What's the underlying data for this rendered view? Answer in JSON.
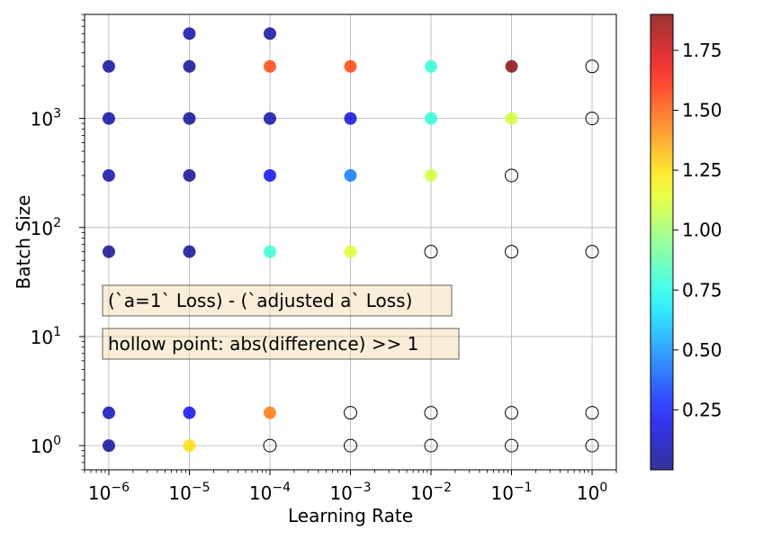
{
  "chart_data": {
    "type": "scatter",
    "xlabel": "Learning Rate",
    "ylabel": "Batch Size",
    "xscale": "log",
    "yscale": "log",
    "xlim": [
      5e-07,
      2
    ],
    "ylim": [
      0.6,
      9000
    ],
    "grid": true,
    "x_ticks": [
      {
        "value": 1e-06,
        "base": "10",
        "exp": "−6"
      },
      {
        "value": 1e-05,
        "base": "10",
        "exp": "−5"
      },
      {
        "value": 0.0001,
        "base": "10",
        "exp": "−4"
      },
      {
        "value": 0.001,
        "base": "10",
        "exp": "−3"
      },
      {
        "value": 0.01,
        "base": "10",
        "exp": "−2"
      },
      {
        "value": 0.1,
        "base": "10",
        "exp": "−1"
      },
      {
        "value": 1,
        "base": "10",
        "exp": "0"
      }
    ],
    "y_ticks": [
      {
        "value": 1,
        "base": "10",
        "exp": "0"
      },
      {
        "value": 10,
        "base": "10",
        "exp": "1"
      },
      {
        "value": 100,
        "base": "10",
        "exp": "2"
      },
      {
        "value": 1000,
        "base": "10",
        "exp": "3"
      }
    ],
    "colorbar": {
      "colormap": "jet",
      "vmin": 0.0,
      "vmax": 1.9,
      "alpha": 0.8,
      "tick_values": [
        0.25,
        0.5,
        0.75,
        1.0,
        1.25,
        1.5,
        1.75
      ],
      "tick_labels": [
        "0.25",
        "0.50",
        "0.75",
        "1.00",
        "1.25",
        "1.50",
        "1.75"
      ]
    },
    "annotations": [
      "(`a=1` Loss) - (`adjusted a` Loss)",
      "hollow point: abs(difference) >> 1"
    ],
    "points": [
      {
        "x": 1e-06,
        "y": 3000,
        "value": 0.05
      },
      {
        "x": 1e-06,
        "y": 1000,
        "value": 0.06
      },
      {
        "x": 1e-06,
        "y": 300,
        "value": 0.06
      },
      {
        "x": 1e-06,
        "y": 60,
        "value": 0.02
      },
      {
        "x": 1e-06,
        "y": 2,
        "value": 0.1
      },
      {
        "x": 1e-06,
        "y": 1,
        "value": 0.05
      },
      {
        "x": 1e-05,
        "y": 6000,
        "value": 0.07
      },
      {
        "x": 1e-05,
        "y": 3000,
        "value": 0.03
      },
      {
        "x": 1e-05,
        "y": 1000,
        "value": 0.04
      },
      {
        "x": 1e-05,
        "y": 300,
        "value": 0.02
      },
      {
        "x": 1e-05,
        "y": 60,
        "value": 0.03
      },
      {
        "x": 1e-05,
        "y": 2,
        "value": 0.2
      },
      {
        "x": 1e-05,
        "y": 1,
        "value": 1.25
      },
      {
        "x": 0.0001,
        "y": 6000,
        "value": 0.06
      },
      {
        "x": 0.0001,
        "y": 3000,
        "value": 1.55
      },
      {
        "x": 0.0001,
        "y": 1000,
        "value": 0.07
      },
      {
        "x": 0.0001,
        "y": 300,
        "value": 0.2
      },
      {
        "x": 0.0001,
        "y": 60,
        "value": 0.8
      },
      {
        "x": 0.0001,
        "y": 2,
        "value": 1.45
      },
      {
        "x": 0.0001,
        "y": 1,
        "value": null
      },
      {
        "x": 0.001,
        "y": 3000,
        "value": 1.55
      },
      {
        "x": 0.001,
        "y": 1000,
        "value": 0.17
      },
      {
        "x": 0.001,
        "y": 300,
        "value": 0.45
      },
      {
        "x": 0.001,
        "y": 60,
        "value": 1.12
      },
      {
        "x": 0.001,
        "y": 2,
        "value": null
      },
      {
        "x": 0.001,
        "y": 1,
        "value": null
      },
      {
        "x": 0.01,
        "y": 3000,
        "value": 0.78
      },
      {
        "x": 0.01,
        "y": 1000,
        "value": 0.78
      },
      {
        "x": 0.01,
        "y": 300,
        "value": 1.1
      },
      {
        "x": 0.01,
        "y": 60,
        "value": null
      },
      {
        "x": 0.01,
        "y": 2,
        "value": null
      },
      {
        "x": 0.01,
        "y": 1,
        "value": null
      },
      {
        "x": 0.1,
        "y": 3000,
        "value": 1.9
      },
      {
        "x": 0.1,
        "y": 1000,
        "value": 1.1
      },
      {
        "x": 0.1,
        "y": 300,
        "value": null
      },
      {
        "x": 0.1,
        "y": 60,
        "value": null
      },
      {
        "x": 0.1,
        "y": 2,
        "value": null
      },
      {
        "x": 0.1,
        "y": 1,
        "value": null
      },
      {
        "x": 1,
        "y": 3000,
        "value": null
      },
      {
        "x": 1,
        "y": 1000,
        "value": null
      },
      {
        "x": 1,
        "y": 60,
        "value": null
      },
      {
        "x": 1,
        "y": 2,
        "value": null
      },
      {
        "x": 1,
        "y": 1,
        "value": null
      }
    ]
  }
}
